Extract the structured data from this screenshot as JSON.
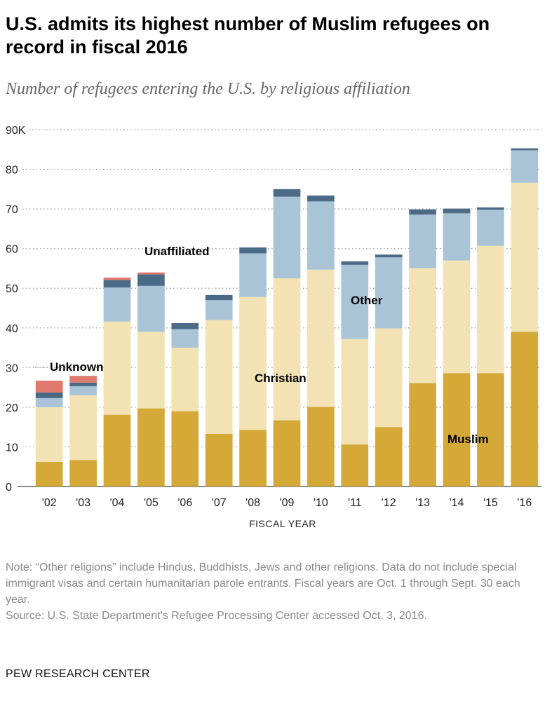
{
  "title": "U.S. admits its highest number of Muslim refugees on record in fiscal 2016",
  "subtitle": "Number of refugees entering the U.S. by religious affiliation",
  "chart_data": {
    "type": "bar",
    "stacked": true,
    "categories": [
      "'02",
      "'03",
      "'04",
      "'05",
      "'06",
      "'07",
      "'08",
      "'09",
      "'10",
      "'11",
      "'12",
      "'13",
      "'14",
      "'15",
      "'16"
    ],
    "series": [
      {
        "name": "Muslim",
        "color": "#d4a937",
        "values": [
          6.2,
          6.7,
          18.1,
          19.7,
          19.0,
          13.3,
          14.3,
          16.7,
          20.1,
          10.6,
          15.0,
          26.1,
          28.6,
          28.6,
          39.0
        ]
      },
      {
        "name": "Christian",
        "color": "#f2e2b4",
        "values": [
          13.8,
          16.3,
          23.5,
          19.3,
          16.0,
          28.7,
          33.5,
          35.8,
          34.6,
          26.6,
          24.9,
          29.0,
          28.4,
          32.1,
          37.6
        ]
      },
      {
        "name": "Unaffiliated",
        "color": "#a8c4d6",
        "values": [
          2.3,
          2.3,
          8.6,
          11.6,
          4.7,
          5.0,
          11.0,
          20.6,
          17.2,
          18.7,
          17.9,
          13.5,
          11.9,
          9.1,
          8.2
        ]
      },
      {
        "name": "Other",
        "color": "#4a6a86",
        "values": [
          1.4,
          0.9,
          1.9,
          2.9,
          1.5,
          1.3,
          1.5,
          1.9,
          1.5,
          0.9,
          0.7,
          1.3,
          1.2,
          0.6,
          0.5
        ]
      },
      {
        "name": "Unknown",
        "color": "#e07a6e",
        "values": [
          3.0,
          1.7,
          0.6,
          0.5,
          0.0,
          0.0,
          0.0,
          0.0,
          0.0,
          0.0,
          0.0,
          0.0,
          0.0,
          0.0,
          0.0
        ]
      }
    ],
    "y_ticks": [
      0,
      10,
      20,
      30,
      40,
      50,
      60,
      70,
      80,
      90
    ],
    "y_tick_labels": [
      "0",
      "10",
      "20",
      "30",
      "40",
      "50",
      "60",
      "70",
      "80",
      "90K"
    ],
    "ylim": [
      0,
      90
    ],
    "xlabel": "FISCAL YEAR",
    "ylabel": "",
    "grid": true,
    "annotations": [
      {
        "text": "Unknown",
        "color": "#e07a6e"
      },
      {
        "text": "Unaffiliated",
        "color": "#5a7e98"
      },
      {
        "text": "Other",
        "color": "#111111"
      },
      {
        "text": "Christian",
        "color": "#111111"
      },
      {
        "text": "Muslim",
        "color": "#111111"
      }
    ]
  },
  "notes": {
    "note": "Note: “Other religions” include Hindus, Buddhists, Jews and other religions. Data do not include special immigrant visas and certain humanitarian parole entrants. Fiscal years are Oct. 1 through Sept. 30 each year.",
    "source": "Source: U.S. State Department’s Refugee Processing Center accessed Oct. 3, 2016."
  },
  "footer": "PEW RESEARCH CENTER"
}
